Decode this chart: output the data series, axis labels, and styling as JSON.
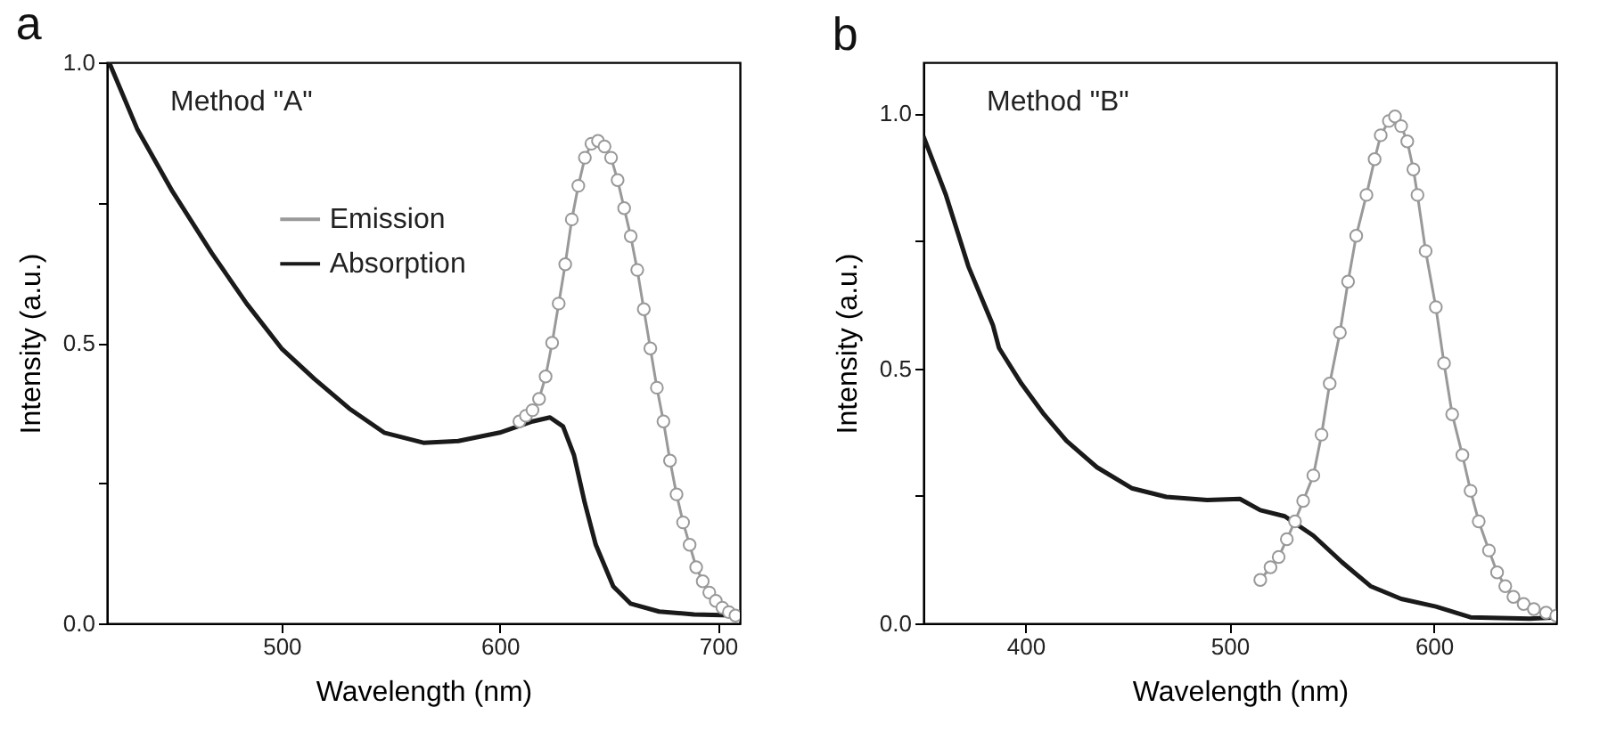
{
  "chart_data": [
    {
      "type": "line",
      "title": "a",
      "xlabel": "Wavelength (nm)",
      "ylabel": "Intensity (a.u.)",
      "annotations": [
        "Method \"A\""
      ],
      "xlim": [
        420,
        710
      ],
      "xticks": [
        500,
        600,
        700
      ],
      "ylim": [
        0,
        1
      ],
      "yticks": [
        {
          "value": 0,
          "label": "0.0"
        },
        {
          "value": 0.25,
          "label": null
        },
        {
          "value": 0.5,
          "label": "0.5"
        },
        {
          "value": 0.75,
          "label": null
        },
        {
          "value": 1,
          "label": "1.0"
        }
      ],
      "legend": "top",
      "grid": false,
      "line_style": "solid",
      "series": [
        {
          "name": "Emission",
          "color": "#999999",
          "marker": "circle",
          "x": [
            609,
            612,
            615,
            618,
            621,
            624,
            627,
            630,
            633,
            636,
            639,
            642,
            645,
            648,
            651,
            654,
            657,
            660,
            663,
            666,
            669,
            672,
            675,
            678,
            681,
            684,
            687,
            690,
            693,
            696,
            699,
            702,
            705,
            708
          ],
          "values": [
            0.36,
            0.37,
            0.38,
            0.4,
            0.44,
            0.5,
            0.57,
            0.64,
            0.72,
            0.78,
            0.83,
            0.855,
            0.86,
            0.85,
            0.83,
            0.79,
            0.74,
            0.69,
            0.63,
            0.56,
            0.49,
            0.42,
            0.36,
            0.29,
            0.23,
            0.18,
            0.14,
            0.1,
            0.075,
            0.055,
            0.04,
            0.028,
            0.02,
            0.014
          ]
        },
        {
          "name": "Absorption",
          "color": "#1a1a1a",
          "marker": "none",
          "x": [
            421,
            434,
            450,
            468,
            484,
            500,
            515,
            531,
            547,
            565,
            581,
            600,
            615,
            623,
            629,
            634,
            639,
            644,
            652,
            660,
            673,
            689,
            710
          ],
          "values": [
            1.0,
            0.88,
            0.77,
            0.66,
            0.57,
            0.49,
            0.436,
            0.383,
            0.34,
            0.322,
            0.325,
            0.34,
            0.36,
            0.367,
            0.351,
            0.3,
            0.214,
            0.14,
            0.066,
            0.035,
            0.021,
            0.016,
            0.014
          ]
        }
      ]
    },
    {
      "type": "line",
      "title": "b",
      "xlabel": "Wavelength (nm)",
      "ylabel": "Intensity (a.u.)",
      "annotations": [
        "Method \"B\""
      ],
      "xlim": [
        350,
        660
      ],
      "xticks": [
        400,
        500,
        600
      ],
      "ylim": [
        0,
        1.1
      ],
      "yticks": [
        {
          "value": 0,
          "label": "0.0"
        },
        {
          "value": 0.25,
          "label": null
        },
        {
          "value": 0.5,
          "label": "0.5"
        },
        {
          "value": 0.75,
          "label": null
        },
        {
          "value": 1,
          "label": "1.0"
        }
      ],
      "legend": "top left",
      "grid": false,
      "line_style": "solid",
      "series": [
        {
          "name": "Emission",
          "color": "#8c8c8c",
          "marker": "circle",
          "x": [
            515,
            520,
            524,
            528,
            532,
            536,
            541,
            545,
            549,
            554,
            558,
            562,
            567,
            571,
            574,
            578,
            581,
            584,
            587,
            590,
            592,
            596,
            601,
            605,
            609,
            614,
            618,
            622,
            627,
            631,
            635,
            639,
            644,
            649,
            655,
            660
          ],
          "values": [
            0.085,
            0.11,
            0.13,
            0.165,
            0.2,
            0.24,
            0.29,
            0.37,
            0.47,
            0.57,
            0.67,
            0.76,
            0.84,
            0.91,
            0.957,
            0.985,
            0.994,
            0.975,
            0.945,
            0.89,
            0.84,
            0.73,
            0.62,
            0.51,
            0.41,
            0.33,
            0.26,
            0.2,
            0.143,
            0.1,
            0.073,
            0.052,
            0.038,
            0.028,
            0.021,
            0.015
          ]
        },
        {
          "name": "Absorption",
          "color": "#1a1a1a",
          "marker": "none",
          "x": [
            350,
            361,
            372,
            384,
            387,
            398,
            409,
            420,
            435,
            452,
            469,
            489,
            505,
            515,
            527,
            541,
            555,
            569,
            584,
            601,
            618,
            647,
            660
          ],
          "values": [
            0.955,
            0.84,
            0.7,
            0.585,
            0.54,
            0.47,
            0.41,
            0.358,
            0.306,
            0.265,
            0.248,
            0.242,
            0.244,
            0.222,
            0.21,
            0.172,
            0.12,
            0.073,
            0.048,
            0.033,
            0.012,
            0.009,
            0.012
          ]
        }
      ]
    }
  ]
}
